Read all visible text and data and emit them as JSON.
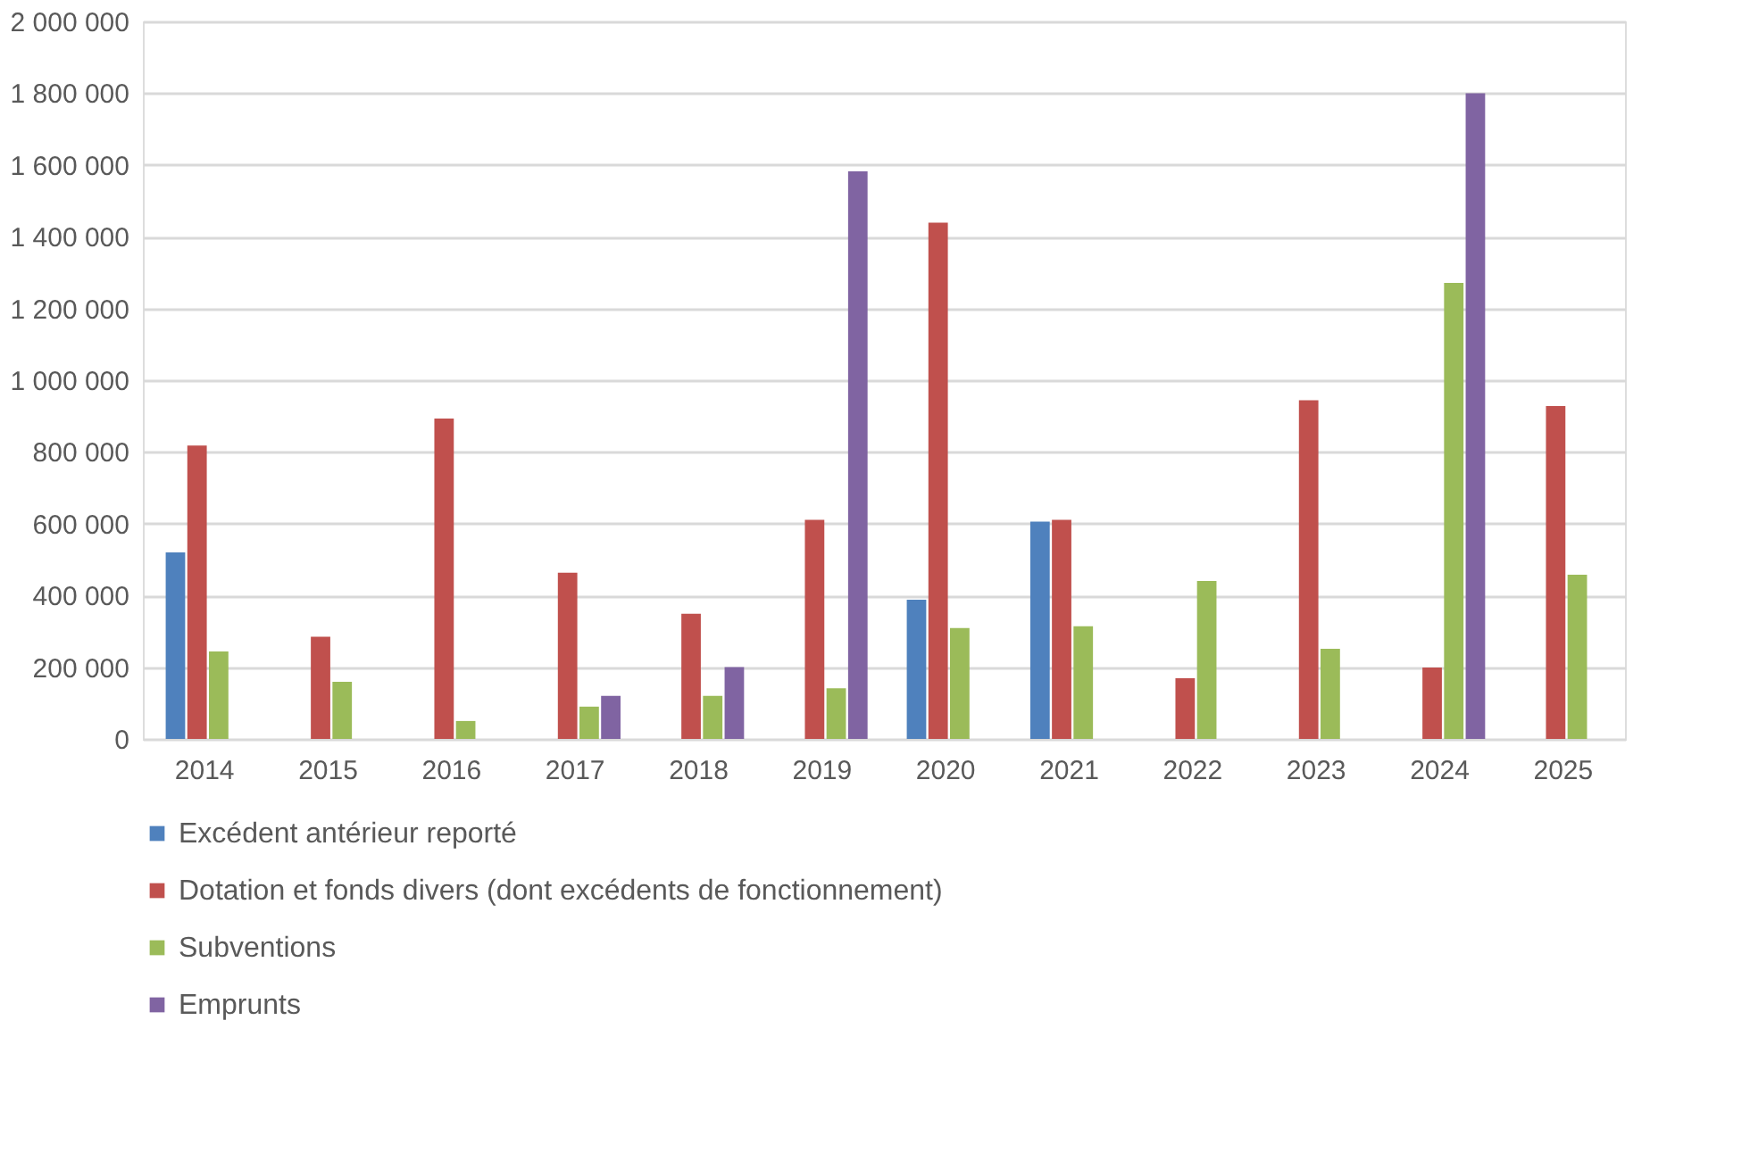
{
  "chart_data": {
    "type": "bar",
    "categories": [
      "2014",
      "2015",
      "2016",
      "2017",
      "2018",
      "2019",
      "2020",
      "2021",
      "2022",
      "2023",
      "2024",
      "2025"
    ],
    "series": [
      {
        "name": "Excédent antérieur reporté",
        "color": "#4f81bd",
        "values": [
          520000,
          null,
          null,
          null,
          null,
          null,
          388000,
          606000,
          null,
          null,
          null,
          null
        ]
      },
      {
        "name": "Dotation et fonds divers (dont excédents de fonctionnement)",
        "color": "#c0504d",
        "values": [
          818000,
          285000,
          893000,
          463000,
          349000,
          611000,
          1439000,
          611000,
          169000,
          944000,
          199000,
          928000
        ]
      },
      {
        "name": "Subventions",
        "color": "#9bbb59",
        "values": [
          244000,
          159000,
          50000,
          90000,
          120000,
          141000,
          309000,
          314000,
          440000,
          251000,
          1271000,
          458000
        ]
      },
      {
        "name": "Emprunts",
        "color": "#8064a2",
        "values": [
          null,
          null,
          null,
          120000,
          200000,
          1582000,
          null,
          null,
          null,
          null,
          1800000,
          null
        ]
      }
    ],
    "ylim": [
      0,
      2000000
    ],
    "yticks": [
      0,
      {
        "value": 200000,
        "label": "200 000"
      },
      {
        "value": 400000,
        "label": "400 000"
      },
      {
        "value": 600000,
        "label": "600 000"
      },
      {
        "value": 800000,
        "label": "800 000"
      },
      {
        "value": 1000000,
        "label": "1 000 000"
      },
      {
        "value": 1200000,
        "label": "1 200 000"
      },
      {
        "value": 1400000,
        "label": "1 400 000"
      },
      {
        "value": 1600000,
        "label": "1 600 000"
      },
      {
        "value": 1800000,
        "label": "1 800 000"
      },
      {
        "value": 2000000,
        "label": "2 000 000"
      }
    ],
    "grid": "y",
    "legend": "bottom"
  }
}
